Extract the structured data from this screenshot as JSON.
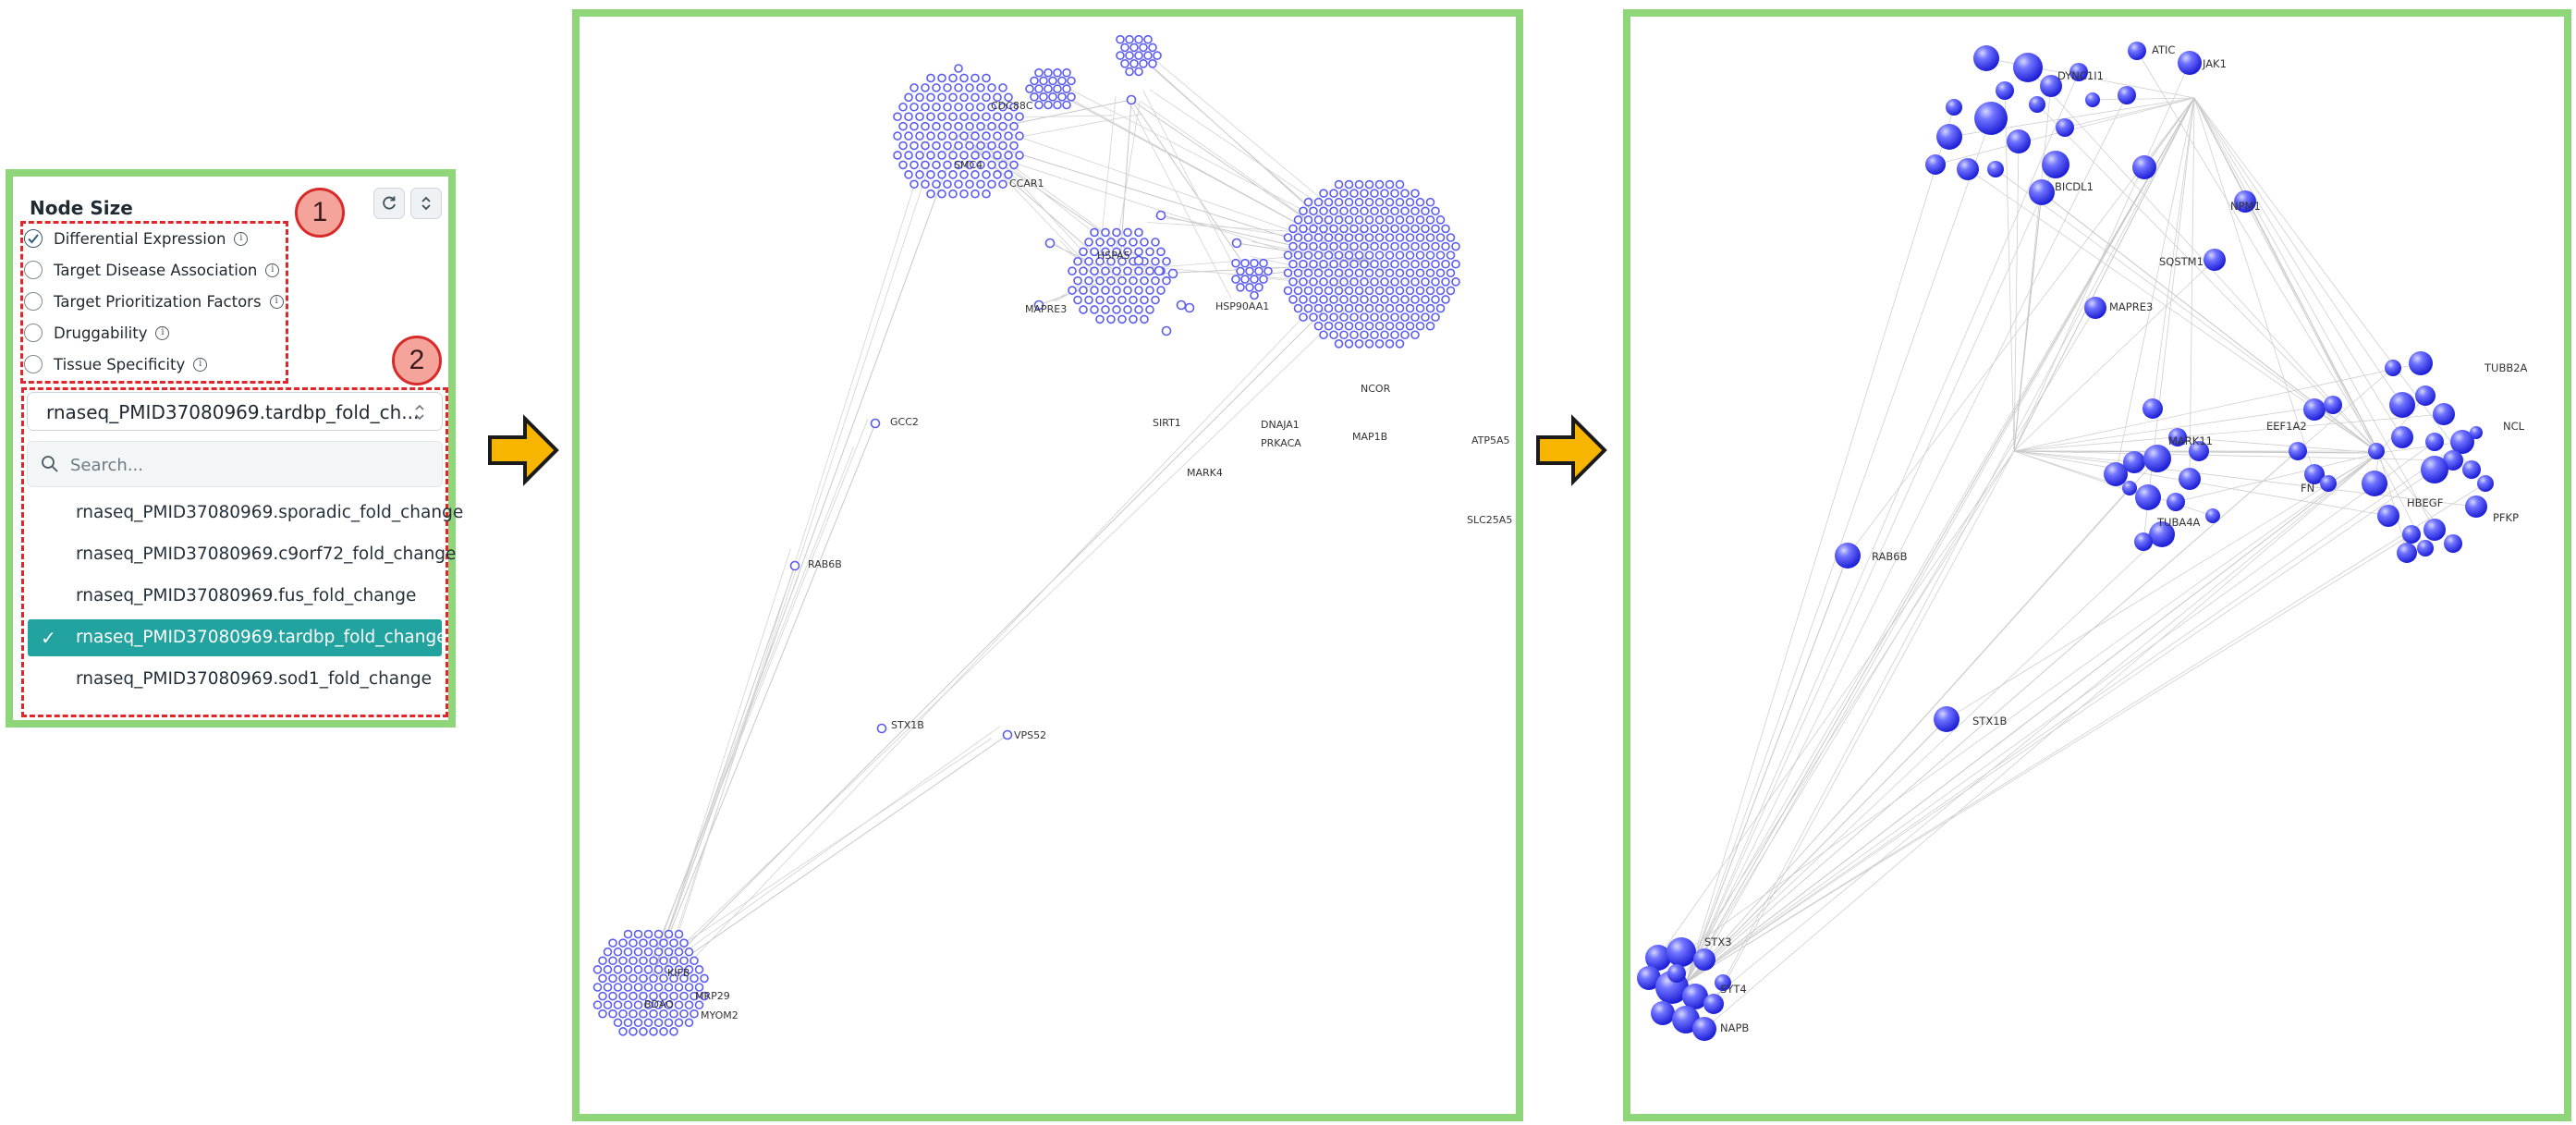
{
  "panel": {
    "title": "Node Size",
    "options": [
      {
        "label": "Differential Expression",
        "checked": true
      },
      {
        "label": "Target Disease Association",
        "checked": false
      },
      {
        "label": "Target Prioritization Factors",
        "checked": false
      },
      {
        "label": "Druggability",
        "checked": false
      },
      {
        "label": "Tissue Specificity",
        "checked": false
      }
    ],
    "info_glyph": "i",
    "badge_1": "1",
    "badge_2": "2",
    "selected_value": "rnaseq_PMID37080969.tardbp_fold_ch...",
    "search_placeholder": "Search...",
    "dropdown_items": [
      {
        "label": "rnaseq_PMID37080969.sporadic_fold_change",
        "selected": false
      },
      {
        "label": "rnaseq_PMID37080969.c9orf72_fold_change",
        "selected": false
      },
      {
        "label": "rnaseq_PMID37080969.fus_fold_change",
        "selected": false
      },
      {
        "label": "rnaseq_PMID37080969.tardbp_fold_change",
        "selected": true
      },
      {
        "label": "rnaseq_PMID37080969.sod1_fold_change",
        "selected": false
      }
    ],
    "check_glyph": "✓"
  },
  "graph1": {
    "labels": [
      "CDC88C",
      "CCAR1",
      "SMC4",
      "HSPA5",
      "MAPRE3",
      "HSP90AA1",
      "GCC2",
      "RAB6B",
      "SIRT1",
      "MARK4",
      "DNAJA1",
      "PRKACA",
      "MAP1B",
      "ATP5A5",
      "SLC25A5",
      "STX1B",
      "VPS52",
      "MYOM2",
      "MRP29",
      "BDAO",
      "KIFB",
      "NCOR"
    ]
  },
  "graph2": {
    "labels": [
      "ATIC",
      "JAK1",
      "DYNC1I1",
      "BICDL1",
      "NPM1",
      "SQSTM1",
      "MAPRE3",
      "TUBB2A",
      "EEF1A2",
      "NCL",
      "MARK11",
      "PFKP",
      "HBEGF",
      "TUBA4A",
      "FN",
      "RAB6B",
      "STX1B",
      "STX3",
      "SYT4",
      "NAPB"
    ]
  },
  "colors": {
    "frame": "#8fd67b",
    "node": "#5b5cf0",
    "accent": "#22a3a0",
    "annotation": "#e0262b",
    "arrow": "#f7b500"
  }
}
